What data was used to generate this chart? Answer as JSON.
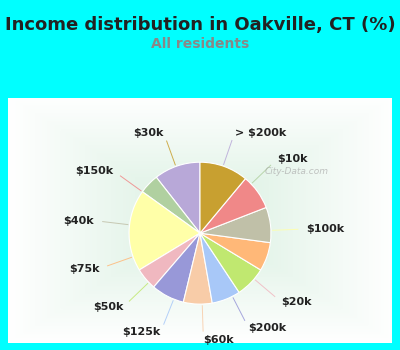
{
  "title": "Income distribution in Oakville, CT (%)",
  "subtitle": "All residents",
  "title_fontsize": 13,
  "subtitle_fontsize": 10,
  "title_color": "#222222",
  "subtitle_color": "#888888",
  "figure_bg": "#00FFFF",
  "chart_bg": "#DDEEE8",
  "watermark": "City-Data.com",
  "labels": [
    "> $200k",
    "$10k",
    "$100k",
    "$20k",
    "$200k",
    "$60k",
    "$125k",
    "$50k",
    "$75k",
    "$40k",
    "$150k",
    "$30k"
  ],
  "sizes": [
    10.5,
    4.5,
    18.5,
    5.0,
    7.5,
    6.5,
    6.5,
    7.0,
    6.5,
    8.0,
    8.0,
    11.0
  ],
  "colors": [
    "#B8A8D8",
    "#B0D0A0",
    "#FFFFA8",
    "#F0B8C0",
    "#9898D8",
    "#F8CCA8",
    "#A8C8F8",
    "#C0E870",
    "#FFB878",
    "#C0C0A8",
    "#F08888",
    "#C8A030"
  ],
  "startangle": 90,
  "label_fontsize": 8,
  "label_color": "#222222"
}
